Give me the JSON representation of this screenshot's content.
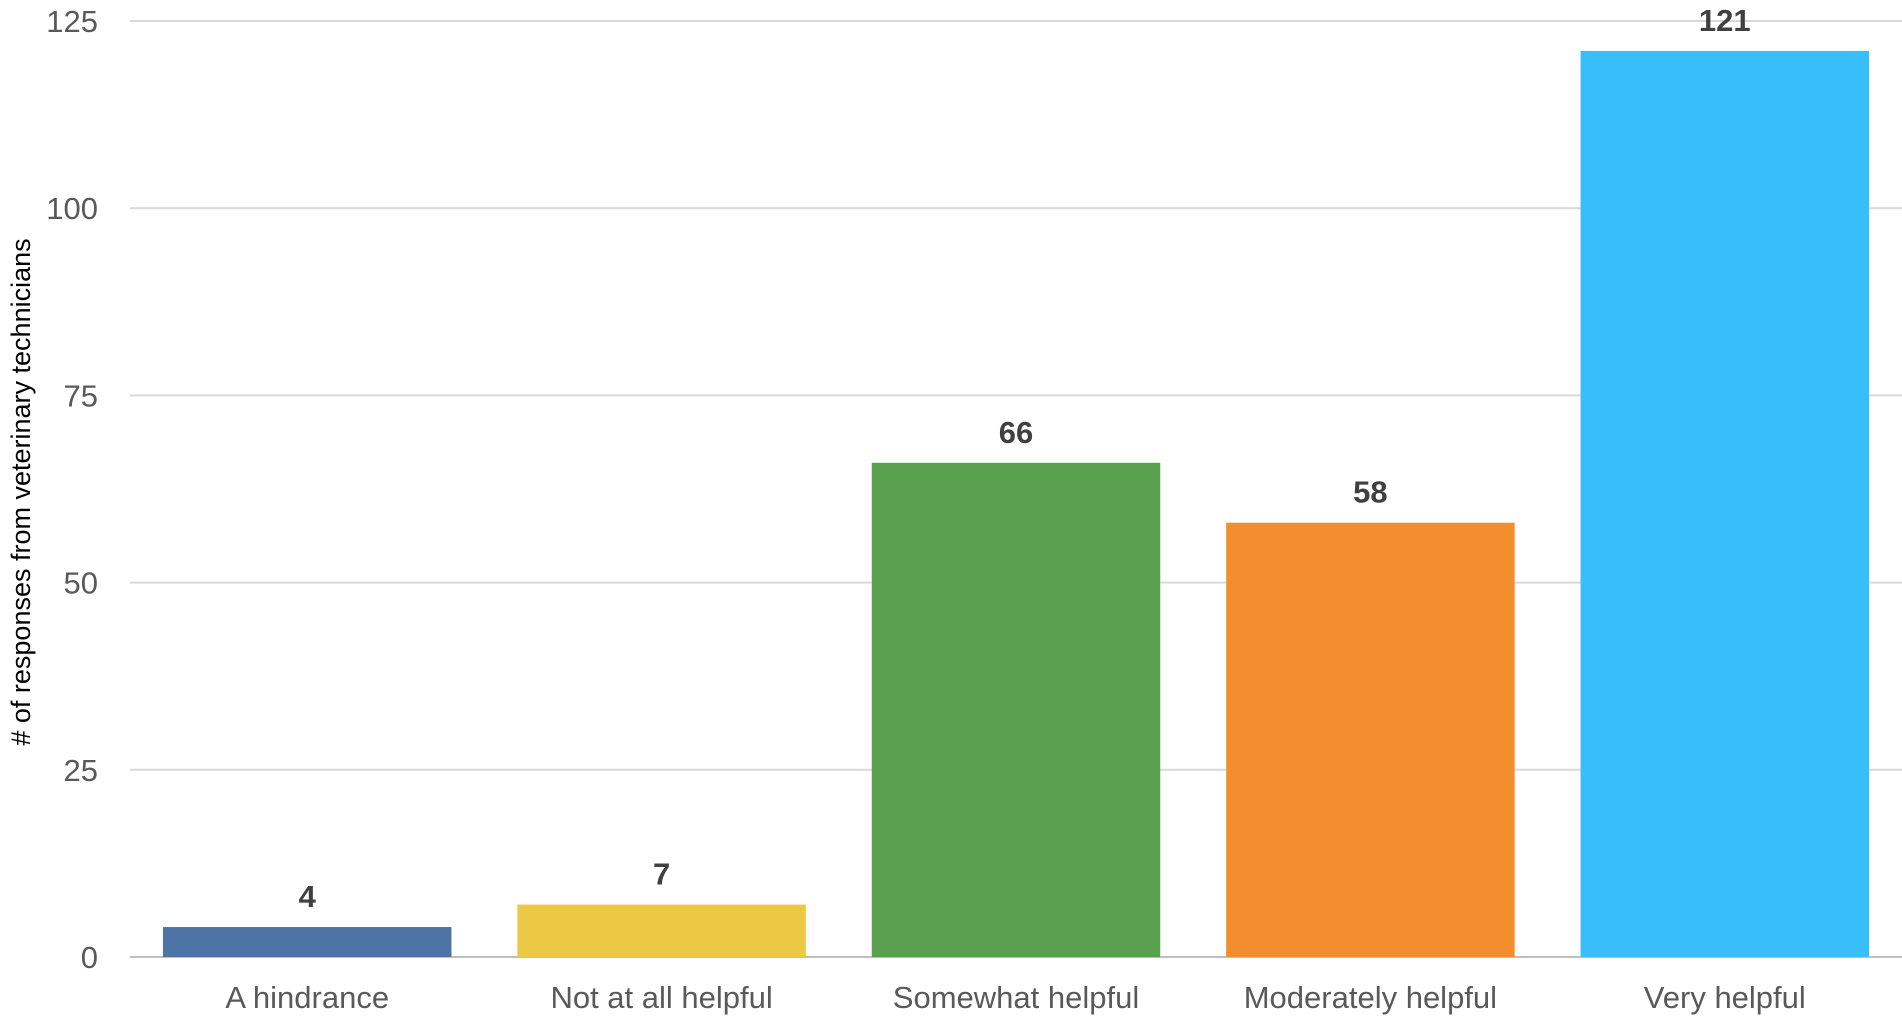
{
  "chart_data": {
    "type": "bar",
    "categories": [
      "A hindrance",
      "Not at all helpful",
      "Somewhat helpful",
      "Moderately helpful",
      "Very helpful"
    ],
    "values": [
      4,
      7,
      66,
      58,
      121
    ],
    "colors": [
      "#4e74a6",
      "#ebc944",
      "#5aa14f",
      "#f28e2e",
      "#38bffb"
    ],
    "title": "",
    "xlabel": "",
    "ylabel": "# of responses  from veterinary technicians",
    "ylim": [
      0,
      125
    ],
    "yticks": [
      0,
      25,
      50,
      75,
      100,
      125
    ],
    "grid": true,
    "gridline_color": "#d9d9d9",
    "legend": "none"
  }
}
